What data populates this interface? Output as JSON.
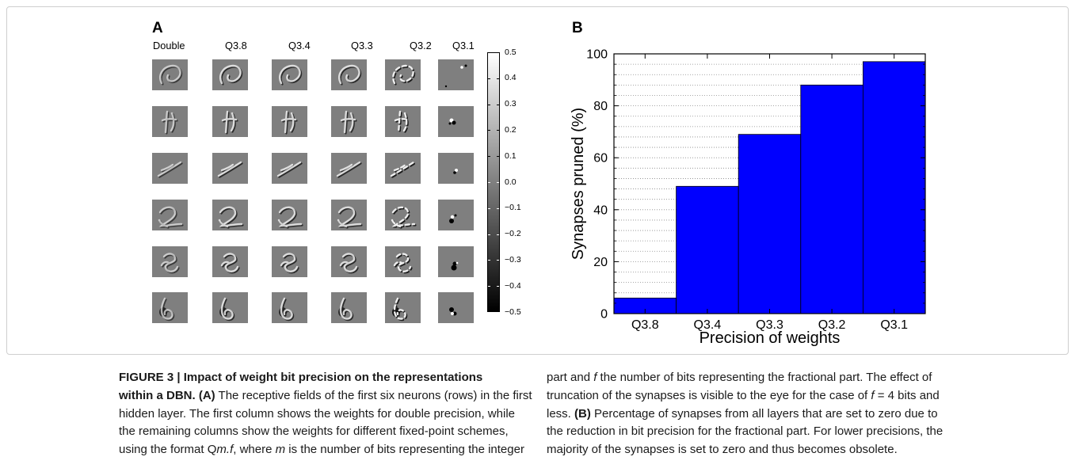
{
  "figure": {
    "panel_a": {
      "label": "A",
      "column_headers": [
        "Double",
        "Q3.8",
        "Q3.4",
        "Q3.3",
        "Q3.2",
        "Q3.1"
      ],
      "colorbar": {
        "ticks": [
          "0.5",
          "0.4",
          "0.3",
          "0.2",
          "0.1",
          "0.0",
          "−0.1",
          "−0.2",
          "−0.3",
          "−0.4",
          "−0.5"
        ],
        "top_color": "#ffffff",
        "bottom_color": "#000000"
      }
    },
    "panel_b": {
      "label": "B"
    }
  },
  "chart_data": {
    "type": "bar",
    "categories": [
      "Q3.8",
      "Q3.4",
      "Q3.3",
      "Q3.2",
      "Q3.1"
    ],
    "values": [
      6,
      49,
      69,
      88,
      97
    ],
    "xlabel": "Precision of weights",
    "ylabel": "Synapses pruned (%)",
    "ylim": [
      0,
      100
    ],
    "yticks": [
      0,
      20,
      40,
      60,
      80,
      100
    ],
    "grid": true,
    "bar_color": "#0000ff"
  },
  "caption": {
    "left": [
      [
        "FIGURE 3 | Impact of weight bit precision on the representations"
      ],
      [
        "within a DBN. (A)",
        " The receptive fields of the first six neurons (rows) in the first"
      ],
      [
        "hidden layer. The first column shows the weights for double precision, while"
      ],
      [
        "the remaining columns show the weights for different fixed-point schemes,"
      ],
      [
        "using the format Q",
        "m.f",
        ", where ",
        "m",
        " is the number of bits representing the integer"
      ]
    ],
    "right": [
      [
        "part and ",
        "f",
        " the number of bits representing the fractional part. The effect of"
      ],
      [
        "truncation of the synapses is visible to the eye for the case of ",
        "f",
        " = 4 bits and"
      ],
      [
        "less. ",
        "(B)",
        " Percentage of synapses from all layers that are set to zero due to"
      ],
      [
        "the reduction in bit precision for the fractional part. For lower precisions, the"
      ],
      [
        "majority of the synapses is set to zero and thus becomes obsolete."
      ]
    ]
  }
}
